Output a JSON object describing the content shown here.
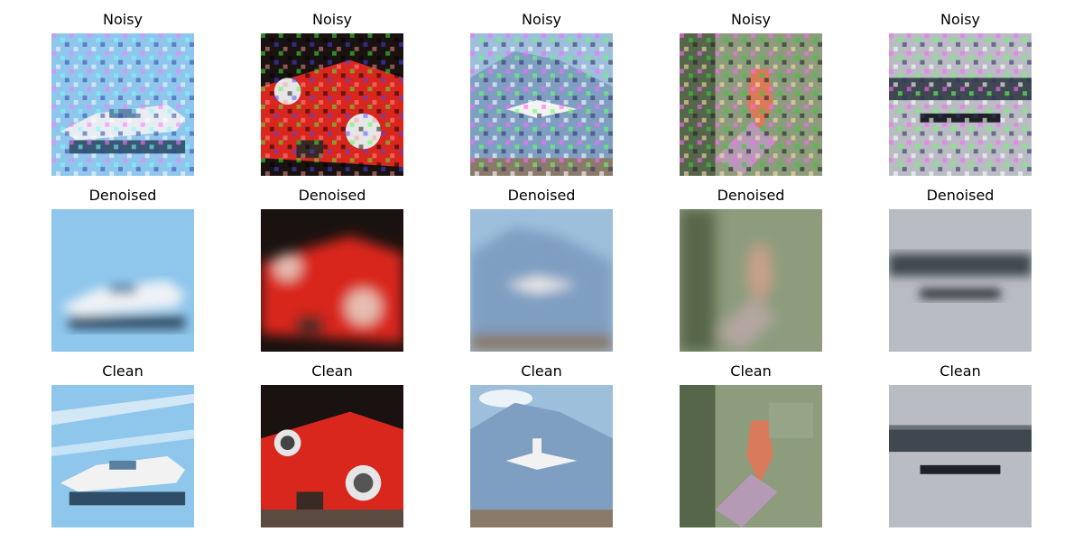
{
  "figure": {
    "rows": [
      {
        "row_label": "noisy",
        "titles": [
          "Noisy",
          "Noisy",
          "Noisy",
          "Noisy",
          "Noisy"
        ]
      },
      {
        "row_label": "denoised",
        "titles": [
          "Denoised",
          "Denoised",
          "Denoised",
          "Denoised",
          "Denoised"
        ]
      },
      {
        "row_label": "clean",
        "titles": [
          "Clean",
          "Clean",
          "Clean",
          "Clean",
          "Clean"
        ]
      }
    ],
    "samples": [
      {
        "subject": "boat",
        "colors": {
          "bg": "#8fc6ec",
          "hull": "#f2f2f2",
          "shadow": "#2f4d66",
          "accent": "#5a7fa2"
        }
      },
      {
        "subject": "red-car",
        "colors": {
          "bg": "#1a1210",
          "body": "#d9271e",
          "wheel": "#e6e6e6",
          "dark": "#3a2a24"
        }
      },
      {
        "subject": "airplane",
        "colors": {
          "bg": "#9dbfdc",
          "mountain": "#7f9fc2",
          "plane": "#f2f2f2",
          "ground": "#8a7a6a"
        }
      },
      {
        "subject": "bird",
        "colors": {
          "bg": "#8c9c7c",
          "bird": "#d97a5a",
          "branch": "#b49ab4",
          "dark": "#56664a"
        }
      },
      {
        "subject": "bridge",
        "colors": {
          "bg": "#b9bcc2",
          "band": "#3f4750",
          "bar": "#1e2226",
          "water": "#c8cbd0"
        }
      }
    ]
  }
}
